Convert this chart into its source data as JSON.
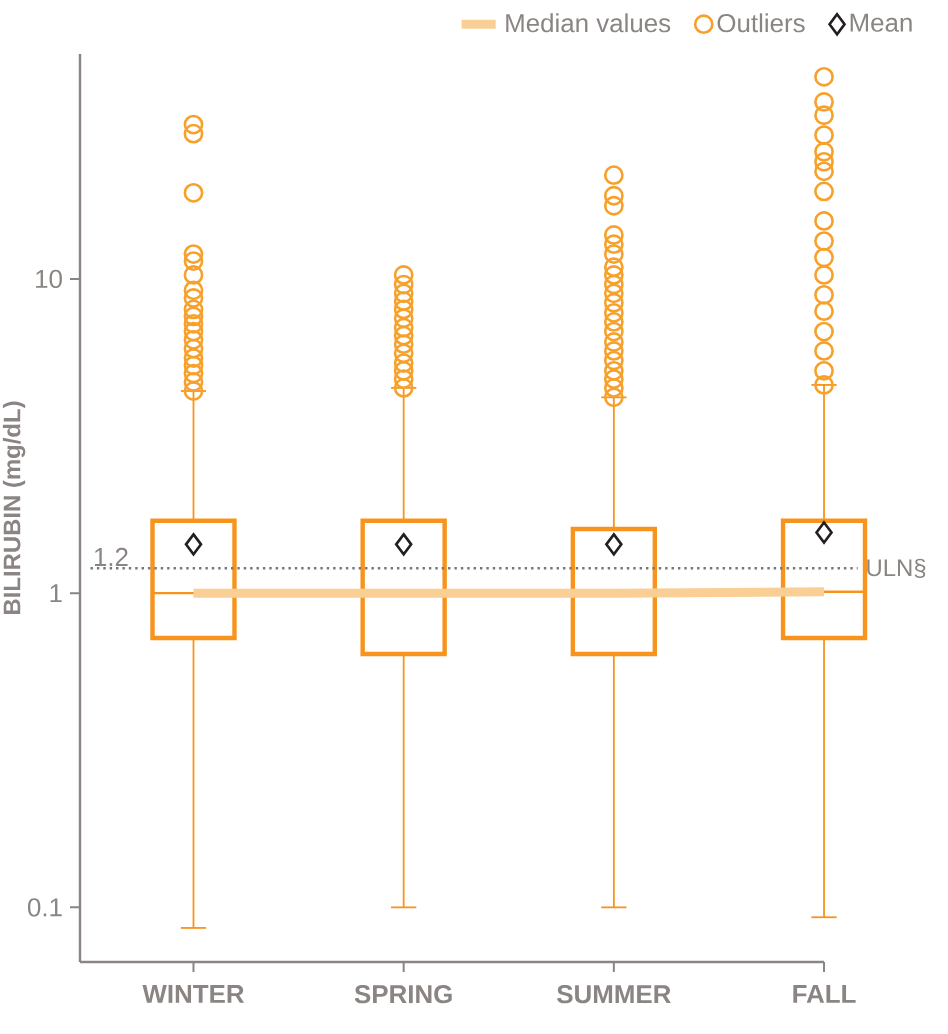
{
  "chart_data": {
    "type": "box",
    "categories": [
      "WINTER",
      "SPRING",
      "SUMMER",
      "FALL"
    ],
    "ylabel": "BILIRUBIN (mg/dL)",
    "log": true,
    "ylim": [
      0.067,
      52
    ],
    "yticks": [
      0.1,
      1,
      10
    ],
    "annotations": [
      {
        "text": "1.2",
        "y": 1.2
      }
    ],
    "legend": "top right",
    "ref_lines": [
      {
        "axis": "y",
        "value": 1.2,
        "label": "ULN§",
        "line_style": "dotted",
        "color": "#777777"
      }
    ],
    "series": [
      {
        "color": "#f7941d",
        "boxes": [
          {
            "low": 0.086,
            "q1": 0.72,
            "median": 1.0,
            "q3": 1.7,
            "high": 4.4
          },
          {
            "low": 0.1,
            "q1": 0.64,
            "median": 1.0,
            "q3": 1.7,
            "high": 4.5
          },
          {
            "low": 0.1,
            "q1": 0.64,
            "median": 1.0,
            "q3": 1.6,
            "high": 4.2
          },
          {
            "low": 0.093,
            "q1": 0.72,
            "median": 1.01,
            "q3": 1.7,
            "high": 4.6
          }
        ]
      },
      {
        "name": "Median values",
        "type": "line",
        "color": "#f9cf96",
        "values": [
          1.0,
          1.0,
          1.0,
          1.01
        ]
      },
      {
        "name": "Outliers",
        "type": "scatter",
        "marker": "circle",
        "color": "#f7a12b",
        "x": [
          "WINTER",
          "WINTER",
          "WINTER",
          "WINTER",
          "WINTER",
          "WINTER",
          "WINTER",
          "WINTER",
          "WINTER",
          "WINTER",
          "WINTER",
          "WINTER",
          "WINTER",
          "WINTER",
          "WINTER",
          "WINTER",
          "WINTER",
          "WINTER",
          "WINTER",
          "SPRING",
          "SPRING",
          "SPRING",
          "SPRING",
          "SPRING",
          "SPRING",
          "SPRING",
          "SPRING",
          "SPRING",
          "SPRING",
          "SPRING",
          "SPRING",
          "SPRING",
          "SPRING",
          "SUMMER",
          "SUMMER",
          "SUMMER",
          "SUMMER",
          "SUMMER",
          "SUMMER",
          "SUMMER",
          "SUMMER",
          "SUMMER",
          "SUMMER",
          "SUMMER",
          "SUMMER",
          "SUMMER",
          "SUMMER",
          "SUMMER",
          "SUMMER",
          "SUMMER",
          "SUMMER",
          "SUMMER",
          "SUMMER",
          "SUMMER",
          "FALL",
          "FALL",
          "FALL",
          "FALL",
          "FALL",
          "FALL",
          "FALL",
          "FALL",
          "FALL",
          "FALL",
          "FALL",
          "FALL",
          "FALL",
          "FALL",
          "FALL",
          "FALL",
          "FALL",
          "FALL"
        ],
        "values": [
          4.4,
          4.7,
          5.0,
          5.3,
          5.6,
          6.0,
          6.4,
          6.8,
          7.2,
          7.6,
          8.0,
          8.7,
          9.2,
          10.3,
          11.4,
          12.0,
          18.8,
          29,
          31,
          4.5,
          4.8,
          5.1,
          5.4,
          5.8,
          6.2,
          6.6,
          7.0,
          7.5,
          8.0,
          8.5,
          9.0,
          9.6,
          10.3,
          4.2,
          4.5,
          4.8,
          5.1,
          5.5,
          5.9,
          6.3,
          6.8,
          7.3,
          7.8,
          8.4,
          9.0,
          9.6,
          10.3,
          10.9,
          12.0,
          12.9,
          13.8,
          17.1,
          18.4,
          21.4,
          4.6,
          5.1,
          5.9,
          6.8,
          7.9,
          8.9,
          10.3,
          11.7,
          13.2,
          15.3,
          19,
          22,
          23.6,
          25.4,
          28.7,
          33.2,
          36.6,
          44
        ]
      },
      {
        "name": "Mean",
        "type": "scatter",
        "marker": "diamond",
        "color": "#231f20",
        "values": [
          1.43,
          1.43,
          1.43,
          1.56
        ]
      }
    ]
  }
}
